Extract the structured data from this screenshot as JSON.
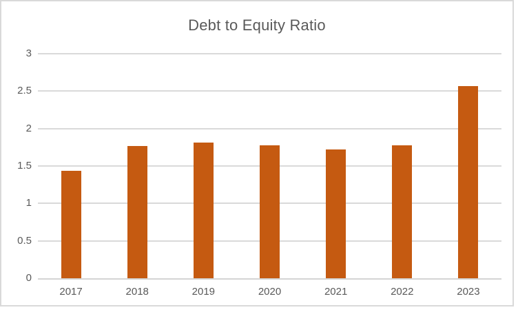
{
  "chart_data": {
    "type": "bar",
    "title": "Debt to Equity Ratio",
    "categories": [
      "2017",
      "2018",
      "2019",
      "2020",
      "2021",
      "2022",
      "2023"
    ],
    "values": [
      1.44,
      1.77,
      1.81,
      1.78,
      1.72,
      1.78,
      2.57
    ],
    "xlabel": "",
    "ylabel": "",
    "ylim": [
      0,
      3
    ],
    "ytick_labels": [
      "0",
      "0.5",
      "1",
      "1.5",
      "2",
      "2.5",
      "3"
    ],
    "ytick_values": [
      0,
      0.5,
      1,
      1.5,
      2,
      2.5,
      3
    ],
    "grid": true,
    "legend": false,
    "colors": {
      "bar": "#C55A11",
      "gridline": "#D9D9D9",
      "axis_line": "#D4D4D4",
      "text": "#595959",
      "frame_border": "#D9D9D9",
      "background": "#FFFFFF"
    }
  }
}
